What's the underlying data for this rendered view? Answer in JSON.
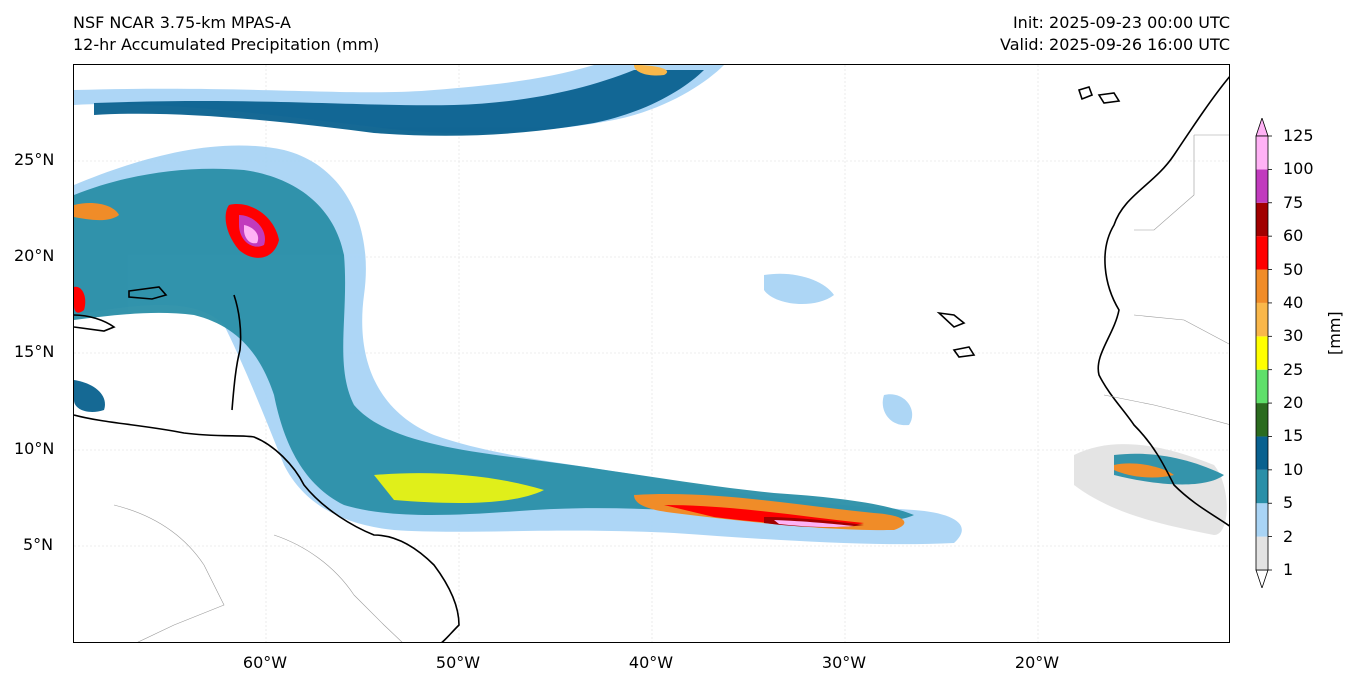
{
  "header": {
    "model": "NSF NCAR 3.75-km MPAS-A",
    "field": "12-hr Accumulated Precipitation (mm)",
    "init": "Init: 2025-09-23 00:00 UTC",
    "valid": "Valid: 2025-09-26 16:00 UTC"
  },
  "map": {
    "lat_labels": [
      "25°N",
      "20°N",
      "15°N",
      "10°N",
      "5°N"
    ],
    "lon_labels": [
      "60°W",
      "50°W",
      "40°W",
      "30°W",
      "20°W"
    ]
  },
  "colorbar": {
    "unit_label": "[mm]",
    "levels": [
      "1",
      "2",
      "5",
      "10",
      "15",
      "20",
      "25",
      "30",
      "40",
      "50",
      "60",
      "75",
      "100",
      "125"
    ],
    "colors": [
      "#e3e3e3",
      "#a9d4f5",
      "#2a8fa8",
      "#09618f",
      "#2b6b1f",
      "#5fe06a",
      "#ffff00",
      "#f9b74a",
      "#f08c28",
      "#ff0000",
      "#a10000",
      "#c13bbd",
      "#ffb2f5"
    ]
  }
}
